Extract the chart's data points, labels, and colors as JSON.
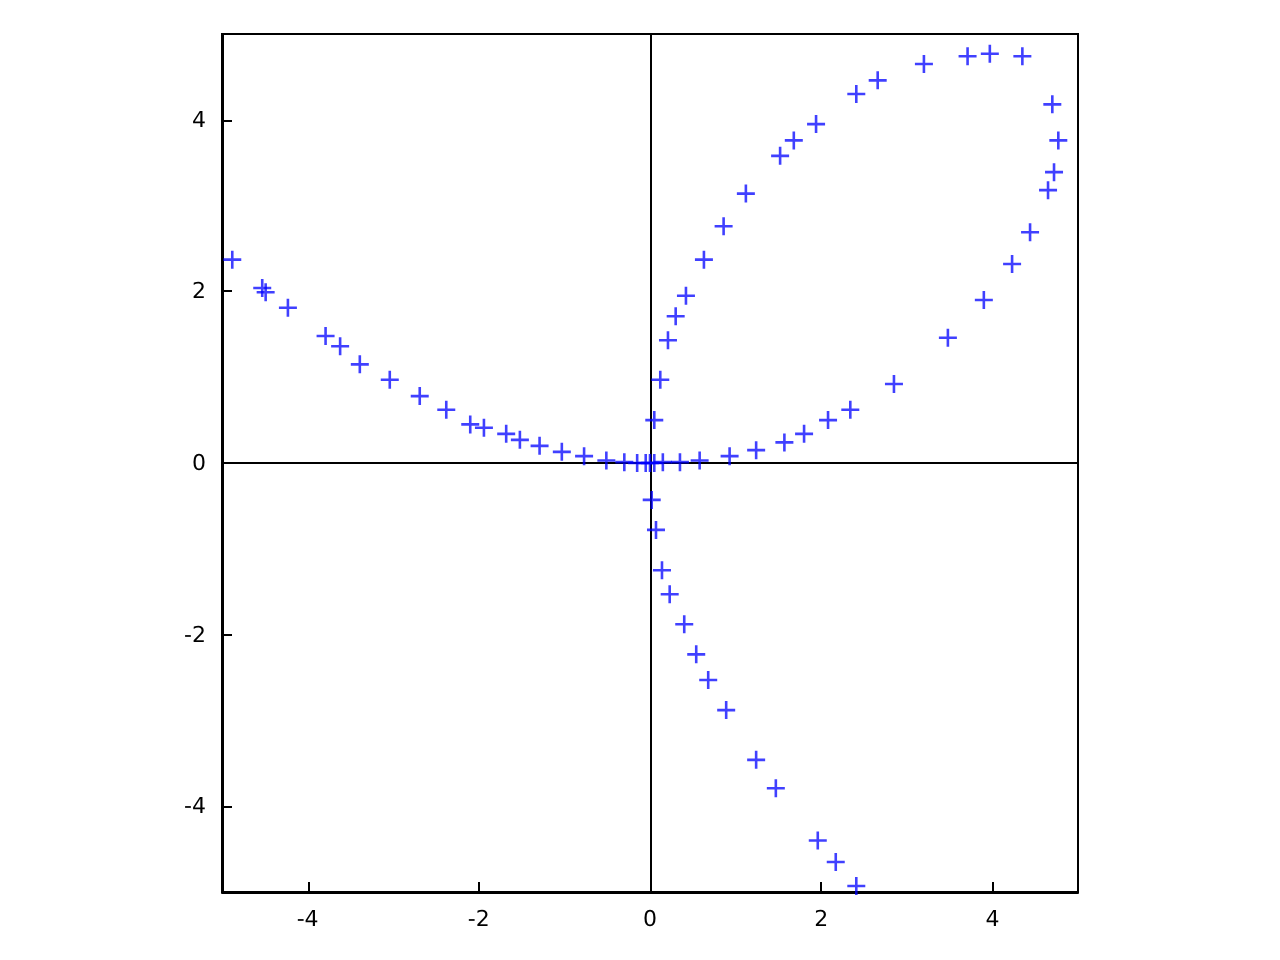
{
  "chart_data": {
    "type": "scatter",
    "marker": "cross",
    "xlim": [
      -5,
      5
    ],
    "ylim": [
      -5,
      5
    ],
    "xticks": [
      -4,
      -2,
      0,
      2,
      4
    ],
    "yticks": [
      -4,
      -2,
      0,
      2,
      4
    ],
    "series": [
      {
        "color": "#0000ff",
        "x": [
          -4.88,
          -4.53,
          -4.49,
          -4.23,
          -3.79,
          -3.62,
          -3.39,
          -3.04,
          -2.69,
          -2.38,
          -2.1,
          -1.94,
          -1.68,
          -1.52,
          -1.29,
          -1.03,
          -0.77,
          -0.51,
          -0.3,
          -0.15,
          -0.05,
          0,
          0.05,
          0.15,
          0.35,
          0.58,
          0.93,
          1.24,
          1.57,
          1.8,
          2.08,
          2.34,
          2.85,
          3.48,
          3.9,
          4.23,
          4.44,
          4.65,
          4.72,
          4.77,
          4.7,
          4.35,
          3.97,
          3.71,
          3.2,
          2.66,
          2.41,
          1.94,
          1.68,
          1.52,
          1.12,
          0.86,
          0.63,
          0.42,
          0.3,
          0.21,
          0.12,
          0.05,
          0.02,
          0.07,
          0.14,
          0.23,
          0.4,
          0.54,
          0.68,
          0.89,
          1.24,
          1.47,
          1.96,
          2.17,
          2.41
        ],
        "values": [
          2.37,
          2.04,
          1.99,
          1.81,
          1.48,
          1.36,
          1.15,
          0.97,
          0.78,
          0.62,
          0.45,
          0.41,
          0.34,
          0.27,
          0.2,
          0.13,
          0.08,
          0.03,
          0.01,
          0,
          0,
          0,
          0,
          0.01,
          0.01,
          0.03,
          0.08,
          0.15,
          0.24,
          0.34,
          0.5,
          0.62,
          0.92,
          1.46,
          1.9,
          2.32,
          2.69,
          3.18,
          3.39,
          3.76,
          4.18,
          4.74,
          4.77,
          4.74,
          4.65,
          4.46,
          4.3,
          3.95,
          3.76,
          3.58,
          3.14,
          2.76,
          2.37,
          1.95,
          1.71,
          1.43,
          0.97,
          0.5,
          -0.43,
          -0.78,
          -1.25,
          -1.53,
          -1.88,
          -2.23,
          -2.53,
          -2.88,
          -3.46,
          -3.79,
          -4.4,
          -4.65,
          -4.93
        ]
      }
    ]
  }
}
